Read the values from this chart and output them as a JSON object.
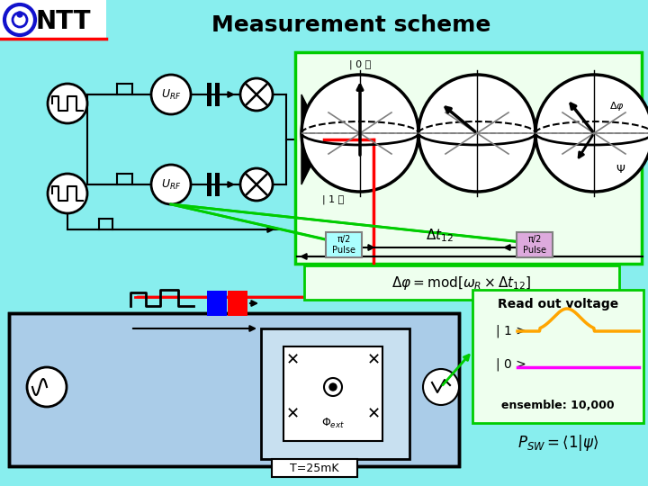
{
  "title": "Measurement scheme",
  "bg_color": "#88EEEE",
  "ntt_logo_color": "#1111CC",
  "ntt_text": "NTT",
  "title_fontsize": 18,
  "read_out_title": "Read out voltage",
  "state1_label": "| 1 >",
  "state0_label": "| 0 >",
  "ensemble_label": "ensemble: 10,000",
  "temp_label": "T=25mK",
  "orange_color": "#FFA500",
  "magenta_color": "#FF00FF",
  "green_color": "#00CC00",
  "red_color": "#FF0000",
  "blue_color": "#0000FF",
  "light_blue_bg": "#99CCEE",
  "yellow_color": "#FFFF00",
  "bloch_bg": "#FFFFFF",
  "formula_bg": "#EEFFEE",
  "readout_bg": "#EEFFEE",
  "pulse1_bg": "#AAFFFF",
  "pulse2_bg": "#DDAADD"
}
